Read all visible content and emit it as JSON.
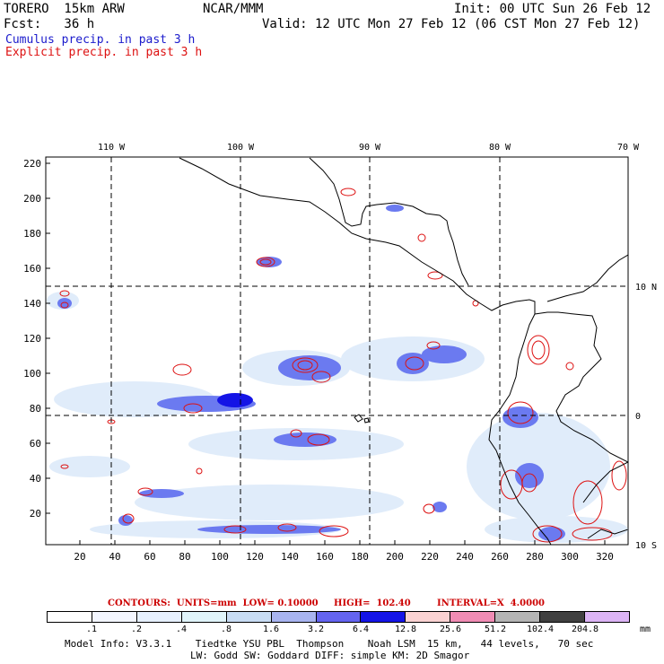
{
  "header": {
    "model_name": "TORERO  15km ARW",
    "institution": "NCAR/MMM",
    "init_time": "Init: 00 UTC Sun 26 Feb 12",
    "forecast": "Fcst:   36 h",
    "valid_time": "Valid: 12 UTC Mon 27 Feb 12 (06 CST Mon 27 Feb 12)",
    "field1": "Cumulus precip. in past 3 h",
    "field2": "Explicit precip. in past 3 h"
  },
  "colors": {
    "field1": "#1a1acc",
    "field2": "#dd1111",
    "coast": "#000000",
    "grid": "#000000"
  },
  "map": {
    "lon_labels": [
      "110 W",
      "100 W",
      "90 W",
      "80 W",
      "70 W"
    ],
    "lat_labels": [
      "10 N",
      "0",
      "10 S"
    ],
    "y_ticks": [
      "220",
      "200",
      "180",
      "160",
      "140",
      "120",
      "100",
      "80",
      "60",
      "40",
      "20"
    ],
    "x_ticks": [
      "20",
      "40",
      "60",
      "80",
      "100",
      "120",
      "140",
      "160",
      "180",
      "200",
      "220",
      "240",
      "260",
      "280",
      "300",
      "320"
    ]
  },
  "contours_line": {
    "label": "CONTOURS:  UNITS=mm  LOW= 0.10000",
    "high": "HIGH=  102.40",
    "interval": "INTERVAL=X  4.0000"
  },
  "legend": {
    "thresholds": [
      ".1",
      ".2",
      ".4",
      ".8",
      "1.6",
      "3.2",
      "6.4",
      "12.8",
      "25.6",
      "51.2",
      "102.4",
      "204.8"
    ],
    "unit": "mm",
    "colors": [
      "#ffffff",
      "#f3f6ff",
      "#e6f0ff",
      "#e0f4fa",
      "#c8dcf4",
      "#a8b4f0",
      "#6464f0",
      "#1414e6",
      "#fad2d2",
      "#f08cb4",
      "#b4b4b4",
      "#404040",
      "#dcb4f5"
    ]
  },
  "model_info": {
    "line1": "Model Info: V3.3.1    Tiedtke YSU PBL  Thompson    Noah LSM  15 km,   44 levels,   70 sec",
    "line2": "LW: Godd SW: Goddard DIFF: simple KM: 2D Smagor"
  }
}
